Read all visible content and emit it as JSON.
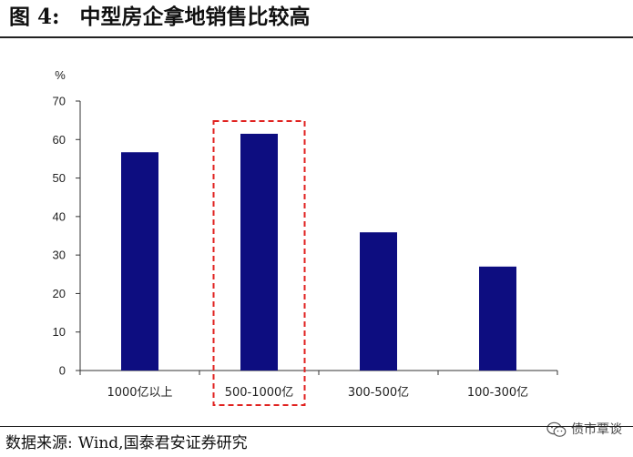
{
  "figure": {
    "label": "图 4:",
    "title": "中型房企拿地销售比较高"
  },
  "source": {
    "label": "数据来源:",
    "value": "Wind,国泰君安证券研究"
  },
  "watermark": {
    "text": "债市覃谈",
    "icon": "wechat-icon"
  },
  "chart_data": {
    "type": "bar",
    "title": "",
    "unit_label": "%",
    "categories": [
      "1000亿以上",
      "500-1000亿",
      "300-500亿",
      "100-300亿"
    ],
    "values": [
      56.7,
      61.5,
      35.9,
      27.0
    ],
    "ylim": [
      0,
      70
    ],
    "yticks": [
      0,
      10,
      20,
      30,
      40,
      50,
      60,
      70
    ],
    "bar_color": "#0d0d80",
    "highlight": {
      "category": "500-1000亿",
      "style": "dashed",
      "color": "#e0211f"
    },
    "grid": false,
    "legend": "none"
  }
}
